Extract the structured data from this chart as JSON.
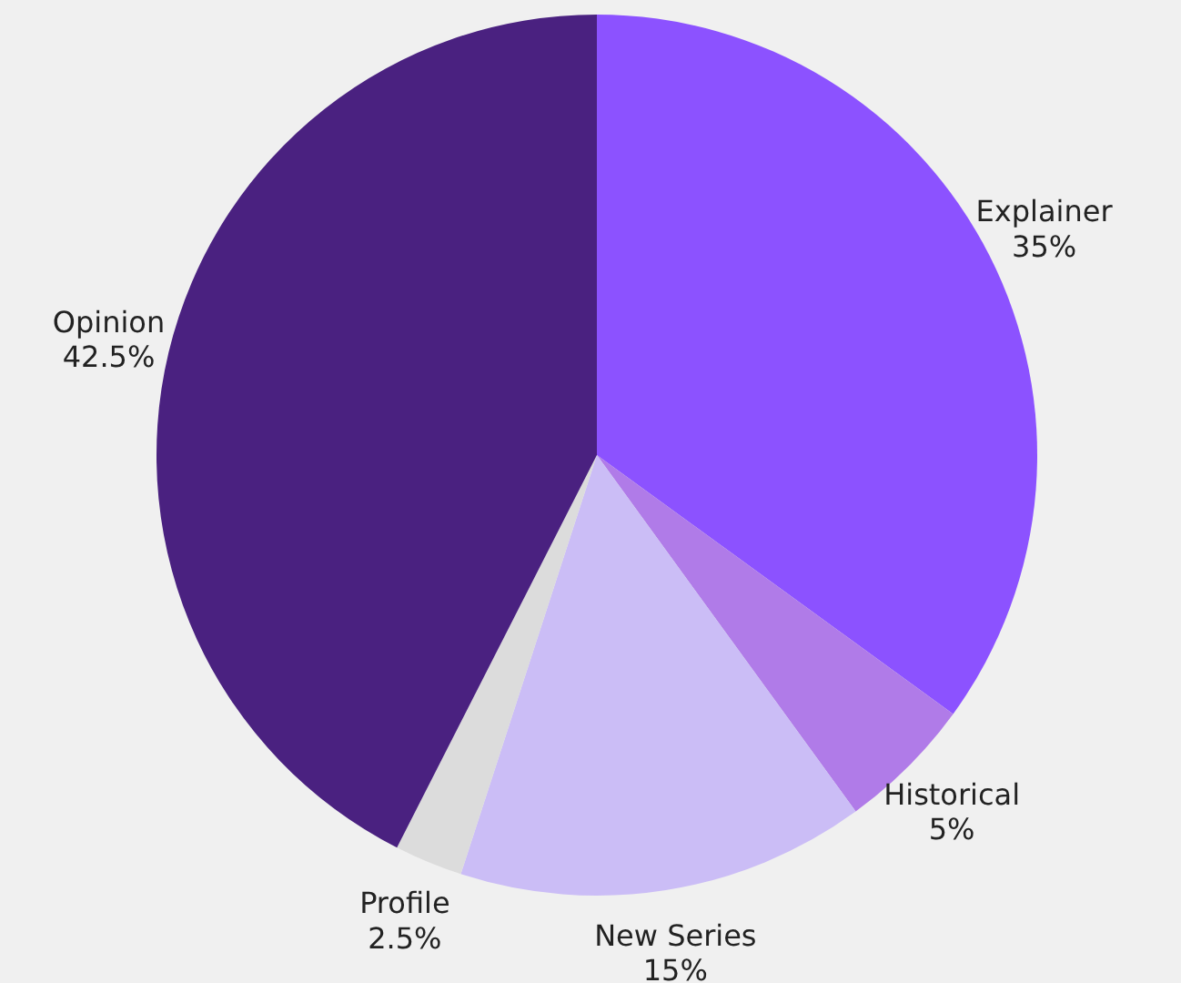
{
  "chart_data": {
    "type": "pie",
    "categories": [
      "Explainer",
      "Historical",
      "New Series",
      "Profile",
      "Opinion"
    ],
    "values": [
      35,
      5,
      15,
      2.5,
      42.5
    ],
    "value_labels": [
      "35%",
      "5%",
      "15%",
      "2.5%",
      "42.5%"
    ],
    "colors": [
      "#8c52ff",
      "#b07be8",
      "#cbbdf6",
      "#dcdcdc",
      "#4a2180"
    ]
  }
}
